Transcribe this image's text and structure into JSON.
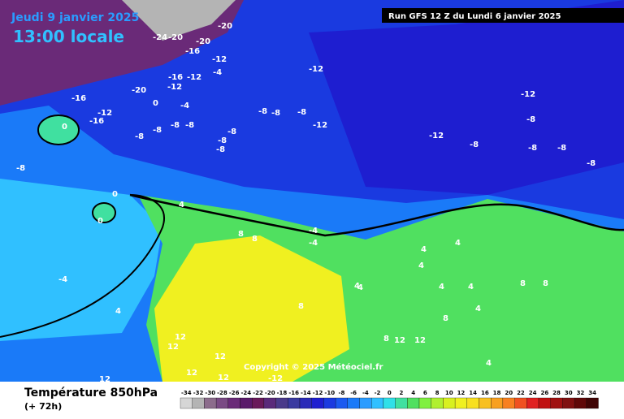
{
  "header": {
    "date": "Jeudi 9 janvier 2025",
    "time": "13:00 locale",
    "run": "Run GFS 12 Z du Lundi 6 janvier 2025"
  },
  "footer": {
    "title": "Température 850hPa",
    "lead": "(+ 72h)",
    "copyright": "Copyright © 2025 Météociel.fr"
  },
  "legend": {
    "ticks": [
      -34,
      -32,
      -30,
      -28,
      -26,
      -24,
      -22,
      -20,
      -18,
      -16,
      -14,
      -12,
      -10,
      -8,
      -6,
      -4,
      -2,
      0,
      2,
      4,
      6,
      8,
      10,
      12,
      14,
      16,
      18,
      20,
      22,
      24,
      26,
      28,
      30,
      32,
      34
    ],
    "colors": [
      "#d6d6d6",
      "#b4b4b4",
      "#8c6c8c",
      "#7a4a84",
      "#6a2a78",
      "#5a1a6a",
      "#6a1a5a",
      "#5a2a7a",
      "#4a3a8a",
      "#3a3aa0",
      "#2a2ab8",
      "#1e1ed0",
      "#1a3ae0",
      "#1a5af0",
      "#1a7af8",
      "#2a9cff",
      "#30c0ff",
      "#30e0e8",
      "#40e0a0",
      "#50e060",
      "#80f040",
      "#b0f030",
      "#d8f020",
      "#f0f020",
      "#f8e020",
      "#f8c020",
      "#f8a020",
      "#f88020",
      "#f05020",
      "#e02020",
      "#c01010",
      "#a01010",
      "#801010",
      "#600808",
      "#400404"
    ]
  },
  "contour_labels": [
    -20,
    -24,
    -20,
    -20,
    -16,
    -12,
    -4,
    -16,
    -20,
    -16,
    -12,
    -12,
    -16,
    -12,
    0,
    -4,
    -8,
    -8,
    -8,
    -8,
    -8,
    -8,
    -8,
    -8,
    -12,
    -12,
    -8,
    -8,
    -12,
    -12,
    -8,
    -8,
    -8,
    -8,
    -8,
    0,
    0,
    0,
    -8,
    -4,
    4,
    4,
    4,
    8,
    8,
    -4,
    -4,
    4,
    4,
    4,
    4,
    4,
    4,
    8,
    8,
    8,
    8,
    12,
    12,
    12,
    12,
    12,
    12,
    12,
    8,
    12,
    4,
    4,
    -12
  ]
}
